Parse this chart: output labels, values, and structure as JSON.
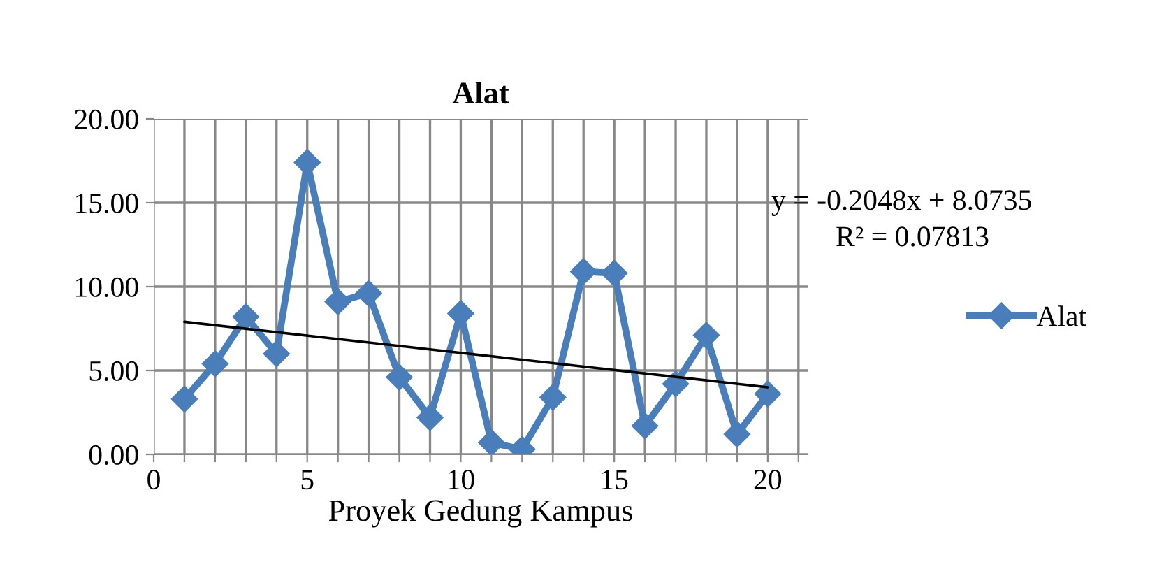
{
  "chart_data": {
    "type": "line",
    "title": "Alat",
    "xlabel": "Proyek Gedung Kampus",
    "annotations": [
      "y = -0.2048x + 8.0735",
      "R² = 0.07813"
    ],
    "x": [
      1,
      2,
      3,
      4,
      5,
      6,
      7,
      8,
      9,
      10,
      11,
      12,
      13,
      14,
      15,
      16,
      17,
      18,
      19,
      20
    ],
    "series": [
      {
        "name": "Alat",
        "color": "#4a7ebb",
        "marker": "diamond",
        "values": [
          3.3,
          5.4,
          8.2,
          6.0,
          17.4,
          9.1,
          9.6,
          4.6,
          2.2,
          8.4,
          0.7,
          0.3,
          3.4,
          10.9,
          10.8,
          1.7,
          4.2,
          7.1,
          1.2,
          3.6
        ]
      },
      {
        "type": "line",
        "color": "#000000",
        "marker": "none",
        "x": [
          1,
          20
        ],
        "values": [
          7.9,
          4.0
        ]
      }
    ],
    "xlim": [
      0,
      21.3
    ],
    "xticks": [
      0,
      {
        "value": 1,
        "label": null
      },
      {
        "value": 2,
        "label": null
      },
      {
        "value": 3,
        "label": null
      },
      {
        "value": 4,
        "label": null
      },
      5,
      {
        "value": 6,
        "label": null
      },
      {
        "value": 7,
        "label": null
      },
      {
        "value": 8,
        "label": null
      },
      {
        "value": 9,
        "label": null
      },
      10,
      {
        "value": 11,
        "label": null
      },
      {
        "value": 12,
        "label": null
      },
      {
        "value": 13,
        "label": null
      },
      {
        "value": 14,
        "label": null
      },
      15,
      {
        "value": 16,
        "label": null
      },
      {
        "value": 17,
        "label": null
      },
      {
        "value": 18,
        "label": null
      },
      {
        "value": 19,
        "label": null
      },
      20,
      {
        "value": 21,
        "label": null
      }
    ],
    "ylim": [
      0,
      20
    ],
    "yticks": [
      {
        "value": 0,
        "label": "0.00"
      },
      {
        "value": 5,
        "label": "5.00"
      },
      {
        "value": 10,
        "label": "10.00"
      },
      {
        "value": 15,
        "label": "15.00"
      },
      {
        "value": 20,
        "label": "20.00"
      }
    ],
    "grid": true,
    "legend": "right",
    "line_style": "solid"
  }
}
